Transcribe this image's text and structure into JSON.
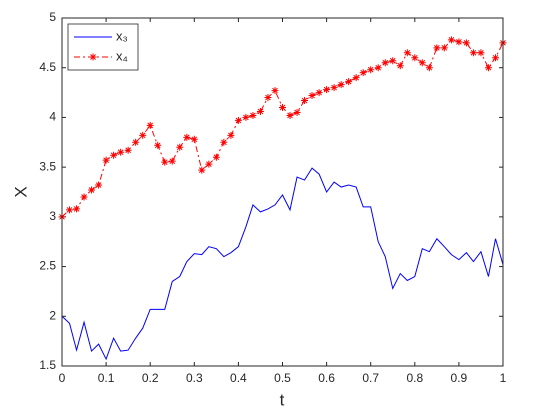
{
  "chart_data": {
    "type": "line",
    "xlabel": "t",
    "ylabel": "X",
    "x": [
      0,
      0.017,
      0.033,
      0.05,
      0.067,
      0.083,
      0.1,
      0.117,
      0.133,
      0.15,
      0.167,
      0.183,
      0.2,
      0.217,
      0.233,
      0.25,
      0.267,
      0.283,
      0.3,
      0.317,
      0.333,
      0.35,
      0.367,
      0.383,
      0.4,
      0.417,
      0.433,
      0.45,
      0.467,
      0.483,
      0.5,
      0.517,
      0.533,
      0.55,
      0.567,
      0.583,
      0.6,
      0.617,
      0.633,
      0.65,
      0.667,
      0.683,
      0.7,
      0.717,
      0.733,
      0.75,
      0.767,
      0.783,
      0.8,
      0.817,
      0.833,
      0.85,
      0.867,
      0.883,
      0.9,
      0.917,
      0.933,
      0.95,
      0.967,
      0.983,
      1.0
    ],
    "series": [
      {
        "name": "x₃",
        "color": "#0000ff",
        "style": "solid",
        "marker": "none",
        "values": [
          2.0,
          1.93,
          1.66,
          1.94,
          1.65,
          1.72,
          1.57,
          1.78,
          1.65,
          1.66,
          1.78,
          1.88,
          2.07,
          2.07,
          2.07,
          2.35,
          2.4,
          2.55,
          2.63,
          2.62,
          2.7,
          2.68,
          2.6,
          2.64,
          2.7,
          2.9,
          3.12,
          3.05,
          3.08,
          3.12,
          3.22,
          3.07,
          3.4,
          3.37,
          3.49,
          3.43,
          3.25,
          3.35,
          3.3,
          3.32,
          3.3,
          3.1,
          3.1,
          2.75,
          2.6,
          2.28,
          2.43,
          2.36,
          2.4,
          2.68,
          2.65,
          2.78,
          2.7,
          2.62,
          2.57,
          2.64,
          2.55,
          2.65,
          2.4,
          2.78,
          2.52
        ]
      },
      {
        "name": "x₄",
        "color": "#ff0000",
        "style": "dashdot",
        "marker": "asterisk",
        "values": [
          3.0,
          3.07,
          3.08,
          3.2,
          3.27,
          3.32,
          3.57,
          3.62,
          3.65,
          3.67,
          3.75,
          3.82,
          3.92,
          3.72,
          3.55,
          3.56,
          3.7,
          3.8,
          3.78,
          3.47,
          3.53,
          3.6,
          3.75,
          3.82,
          3.97,
          4.0,
          4.02,
          4.06,
          4.2,
          4.27,
          4.1,
          4.02,
          4.05,
          4.17,
          4.22,
          4.25,
          4.28,
          4.3,
          4.33,
          4.36,
          4.4,
          4.45,
          4.48,
          4.5,
          4.55,
          4.57,
          4.52,
          4.65,
          4.6,
          4.55,
          4.5,
          4.7,
          4.7,
          4.78,
          4.76,
          4.75,
          4.65,
          4.65,
          4.5,
          4.6,
          4.75
        ]
      }
    ],
    "xlim": [
      0,
      1
    ],
    "xticks": [
      0,
      0.1,
      0.2,
      0.3,
      0.4,
      0.5,
      0.6,
      0.7,
      0.8,
      0.9,
      1
    ],
    "ylim": [
      1.5,
      5
    ],
    "yticks": [
      1.5,
      2,
      2.5,
      3,
      3.5,
      4,
      4.5,
      5
    ],
    "grid": false,
    "legend": "northwest"
  }
}
